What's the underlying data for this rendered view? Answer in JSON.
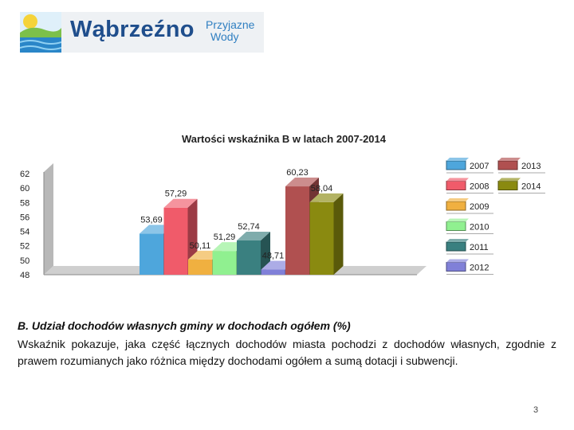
{
  "header": {
    "logo_main": "Wąbrzeźno",
    "logo_sub_line1": "Przyjazne",
    "logo_sub_line2": "Wody",
    "colors": {
      "brand_blue": "#1f4e8c",
      "sub_blue": "#2f7fc1"
    }
  },
  "chart_data": {
    "type": "bar",
    "title": "Wartości wskaźnika B w latach 2007-2014",
    "xlabel": "",
    "ylabel": "",
    "ylim": [
      48,
      62
    ],
    "yticks": [
      48,
      50,
      52,
      54,
      56,
      58,
      60,
      62
    ],
    "legend_position": "right",
    "series": [
      {
        "name": "2007",
        "value": 53.69,
        "label": "53,69",
        "color": "#4ea6dc"
      },
      {
        "name": "2008",
        "value": 57.29,
        "label": "57,29",
        "color": "#f05b6a"
      },
      {
        "name": "2009",
        "value": 50.11,
        "label": "50,11",
        "color": "#f0b040"
      },
      {
        "name": "2010",
        "value": 51.29,
        "label": "51,29",
        "color": "#90f090"
      },
      {
        "name": "2011",
        "value": 52.74,
        "label": "52,74",
        "color": "#3a8080"
      },
      {
        "name": "2012",
        "value": 48.71,
        "label": "48,71",
        "color": "#8080d8"
      },
      {
        "name": "2013",
        "value": 60.23,
        "label": "60,23",
        "color": "#b05050"
      },
      {
        "name": "2014",
        "value": 58.04,
        "label": "58,04",
        "color": "#8a8a10"
      }
    ]
  },
  "text": {
    "heading": "B. Udział dochodów własnych gminy w dochodach ogółem (%)",
    "body": "Wskaźnik pokazuje, jaka część łącznych dochodów miasta pochodzi z dochodów własnych, zgodnie z prawem rozumianych jako różnica między dochodami ogółem a sumą dotacji i subwencji."
  },
  "page": {
    "number": "3"
  }
}
